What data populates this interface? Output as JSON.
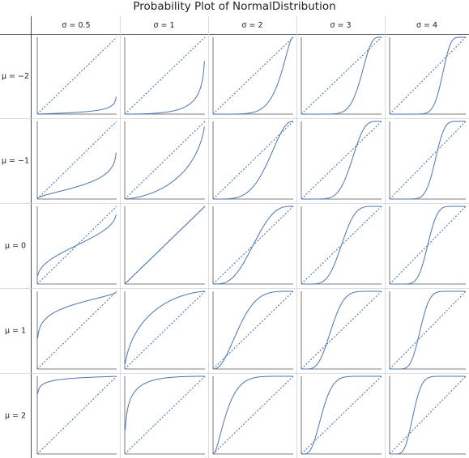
{
  "title": "Probability Plot of NormalDistribution",
  "chart_data": {
    "type": "scatter",
    "description_kind": "probability-plot grid",
    "title": "Probability Plot of NormalDistribution",
    "column_header": [
      "σ = 0.5",
      "σ = 1",
      "σ = 2",
      "σ = 3",
      "σ = 4"
    ],
    "row_header": [
      "μ = −2",
      "μ = −1",
      "μ = 0",
      "μ = 1",
      "μ = 2"
    ],
    "sigma_values": [
      0.5,
      1,
      2,
      3,
      4
    ],
    "mu_values": [
      -2,
      -1,
      0,
      1,
      2
    ],
    "reference_distribution": {
      "mu": 0,
      "sigma": 1
    },
    "axes": {
      "xlim": [
        0,
        1
      ],
      "ylim": [
        0,
        1
      ]
    },
    "reference_line": "dashed diagonal",
    "series_color": "#4a76b0",
    "grid": false
  }
}
